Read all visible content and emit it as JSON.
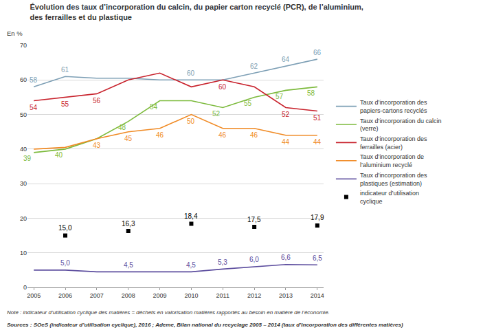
{
  "chart_data": {
    "type": "line",
    "title": "Évolution des taux d’incorporation du calcin, du papier carton recyclé (PCR), de l’aluminium, des ferrailles et du plastique",
    "ylabel": "En %",
    "x": [
      2005,
      2006,
      2007,
      2008,
      2009,
      2010,
      2011,
      2012,
      2013,
      2014
    ],
    "xlim": [
      2004.8,
      2014.2
    ],
    "xticks": [
      2005,
      2006,
      2007,
      2008,
      2009,
      2010,
      2011,
      2012,
      2013,
      2014
    ],
    "ylim": [
      0,
      70
    ],
    "yticks": [
      0,
      10,
      20,
      30,
      40,
      50,
      60,
      70
    ],
    "grid": true,
    "legend": "right",
    "data_labels": true,
    "series": [
      {
        "name": "Taux d’incorporation des papiers-cartons recyclés",
        "color": "#7d9fb5",
        "line_style": "solid",
        "values": [
          58,
          61,
          60.5,
          60.5,
          60,
          60,
          60,
          62,
          64,
          66
        ],
        "value_labels": [
          "58",
          "61",
          null,
          null,
          null,
          "60",
          null,
          "62",
          "64",
          "66"
        ]
      },
      {
        "name": "Taux d’incorporation du calcin (verre)",
        "color": "#7cba3c",
        "line_style": "solid",
        "values": [
          39,
          40,
          43,
          48,
          54,
          54,
          52,
          55,
          57,
          58
        ],
        "value_labels": [
          "39",
          "40",
          null,
          "48",
          "54",
          null,
          "52",
          "55",
          "57",
          "58"
        ]
      },
      {
        "name": "Taux d’incorporation des ferrailles (acier)",
        "color": "#c8222c",
        "line_style": "solid",
        "values": [
          54,
          55,
          56,
          60,
          62,
          58,
          60,
          58,
          52,
          51
        ],
        "value_labels": [
          "54",
          "55",
          "56",
          null,
          null,
          null,
          "60",
          null,
          "52",
          "51"
        ]
      },
      {
        "name": "Taux d’incorporation de l’aluminium recyclé",
        "color": "#f08a24",
        "line_style": "solid",
        "values": [
          40,
          40.5,
          43,
          45,
          46,
          50,
          46,
          46,
          44,
          44
        ],
        "value_labels": [
          null,
          null,
          "43",
          "45",
          "46",
          "50",
          "46",
          "46",
          "44",
          "44"
        ]
      },
      {
        "name": "Taux d’incorporation des plastiques (estimation)",
        "color": "#5c4d9e",
        "line_style": "solid",
        "values": [
          5.0,
          5.0,
          4.5,
          4.5,
          4.5,
          4.5,
          5.3,
          6.0,
          6.6,
          6.5
        ],
        "value_labels": [
          null,
          "5,0",
          null,
          "4,5",
          null,
          "4,5",
          "5,3",
          "6,0",
          "6,6",
          "6,5"
        ]
      },
      {
        "name": "indicateur d’utilisation cyclique",
        "color": "#000000",
        "type": "scatter",
        "marker": "square",
        "values": [
          null,
          15.0,
          null,
          16.3,
          null,
          18.4,
          null,
          17.5,
          null,
          17.9
        ],
        "value_labels": [
          null,
          "15,0",
          null,
          "16,3",
          null,
          "18,4",
          null,
          "17,5",
          null,
          "17,9"
        ]
      }
    ],
    "annotations": [
      "Note : indicateur d’utilisation cyclique des matières = déchets en valorisation matières rapportés au besoin en matière de l’économie.",
      "Sources : SOeS (indicateur d’utilisation cyclique), 2016 ; Ademe, Bilan national du recyclage 2005 – 2014 (taux d’incorporation des différentes matières)"
    ]
  }
}
